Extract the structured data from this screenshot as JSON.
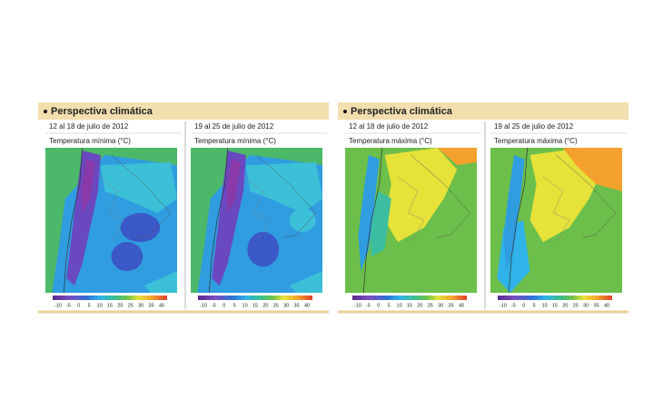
{
  "panels": [
    {
      "title": "Perspectiva climática",
      "maps": [
        {
          "date": "12 al 18 de julio de 2012",
          "variable": "Temperatura mínima  (°C)",
          "scale": [
            -10,
            -5,
            0,
            5,
            10,
            15,
            20,
            25,
            30,
            35,
            40
          ]
        },
        {
          "date": "19 al 25 de julio de 2012",
          "variable": "Temperatura mínima (°C)",
          "scale": [
            -10,
            -5,
            0,
            5,
            10,
            15,
            20,
            25,
            30,
            35,
            40
          ]
        }
      ]
    },
    {
      "title": "Perspectiva climática",
      "maps": [
        {
          "date": "12 al 18 de julio de 2012",
          "variable": "Temperatura máxima  (°C)",
          "scale": [
            -10,
            -5,
            0,
            5,
            10,
            15,
            20,
            25,
            30,
            35,
            40
          ]
        },
        {
          "date": "19 al 25 de julio de 2012",
          "variable": "Temperatura máxima (°C)",
          "scale": [
            -10,
            -5,
            0,
            5,
            10,
            15,
            20,
            25,
            30,
            35,
            40
          ]
        }
      ]
    }
  ]
}
